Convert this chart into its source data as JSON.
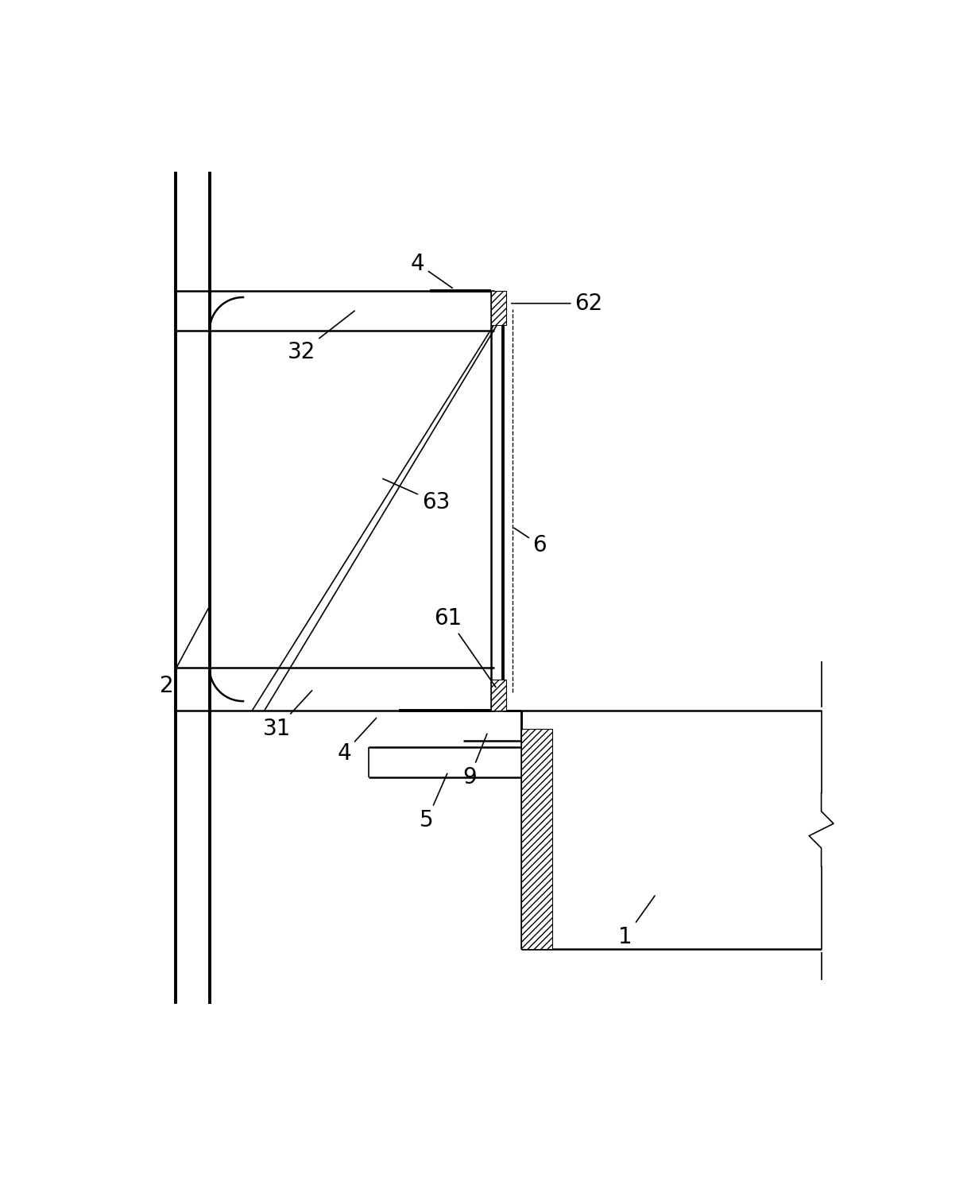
{
  "bg_color": "#ffffff",
  "line_color": "#000000",
  "figsize": [
    12.22,
    15.06
  ],
  "dpi": 100,
  "lw_thick": 2.8,
  "lw_med": 1.8,
  "lw_thin": 1.2,
  "lw_dash": 1.0,
  "font_size": 20
}
